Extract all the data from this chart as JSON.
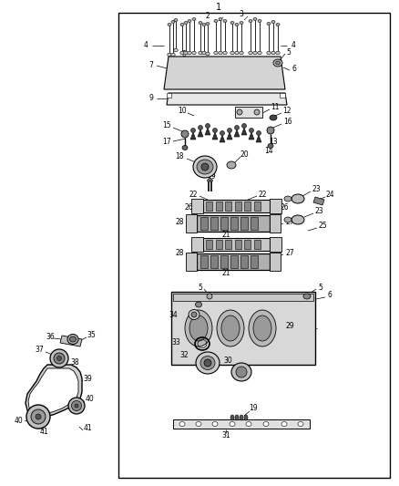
{
  "bg_color": "#ffffff",
  "border_color": "#000000",
  "fig_width": 4.38,
  "fig_height": 5.33,
  "dpi": 100
}
